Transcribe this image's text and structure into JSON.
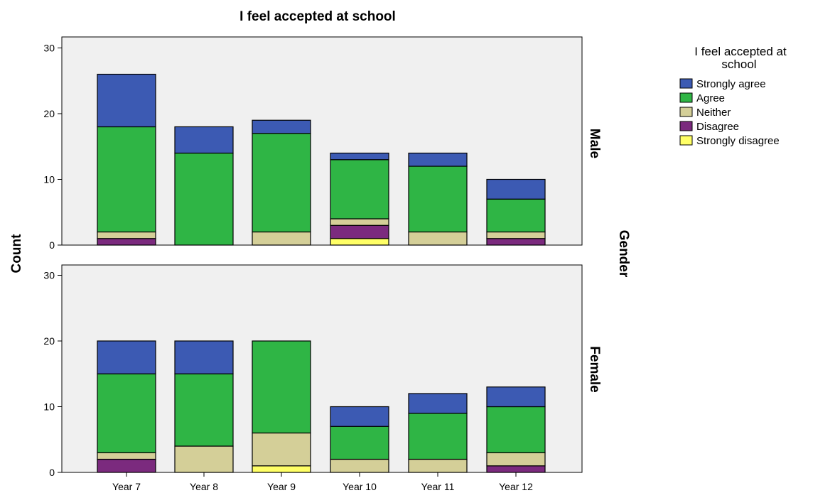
{
  "chart_data": {
    "type": "bar",
    "stacked": true,
    "title": "I feel accepted at school",
    "ylabel": "Count",
    "panel_group_label": "Gender",
    "ylim": [
      0,
      30
    ],
    "yticks": [
      0,
      10,
      20,
      30
    ],
    "categories": [
      "Year 7",
      "Year 8",
      "Year 9",
      "Year 10",
      "Year 11",
      "Year 12"
    ],
    "legend": {
      "title": "I feel accepted at school",
      "placement": "right"
    },
    "series": [
      {
        "name": "Strongly disagree",
        "color": "#ffff66"
      },
      {
        "name": "Disagree",
        "color": "#7b2a7e"
      },
      {
        "name": "Neither",
        "color": "#d4cf98"
      },
      {
        "name": "Agree",
        "color": "#2fb545"
      },
      {
        "name": "Strongly agree",
        "color": "#3c5ab3"
      }
    ],
    "legend_order": [
      "Strongly agree",
      "Agree",
      "Neither",
      "Disagree",
      "Strongly disagree"
    ],
    "panels": [
      {
        "label": "Male",
        "values": {
          "Strongly disagree": [
            0,
            0,
            0,
            1,
            0,
            0
          ],
          "Disagree": [
            1,
            0,
            0,
            2,
            0,
            1
          ],
          "Neither": [
            1,
            0,
            2,
            1,
            2,
            1
          ],
          "Agree": [
            16,
            14,
            15,
            9,
            10,
            5
          ],
          "Strongly agree": [
            8,
            4,
            2,
            1,
            2,
            3
          ]
        }
      },
      {
        "label": "Female",
        "values": {
          "Strongly disagree": [
            0,
            0,
            1,
            0,
            0,
            0
          ],
          "Disagree": [
            2,
            0,
            0,
            0,
            0,
            1
          ],
          "Neither": [
            1,
            4,
            5,
            2,
            2,
            2
          ],
          "Agree": [
            12,
            11,
            14,
            5,
            7,
            7
          ],
          "Strongly agree": [
            5,
            5,
            0,
            3,
            3,
            3
          ]
        }
      }
    ],
    "grid": false
  }
}
